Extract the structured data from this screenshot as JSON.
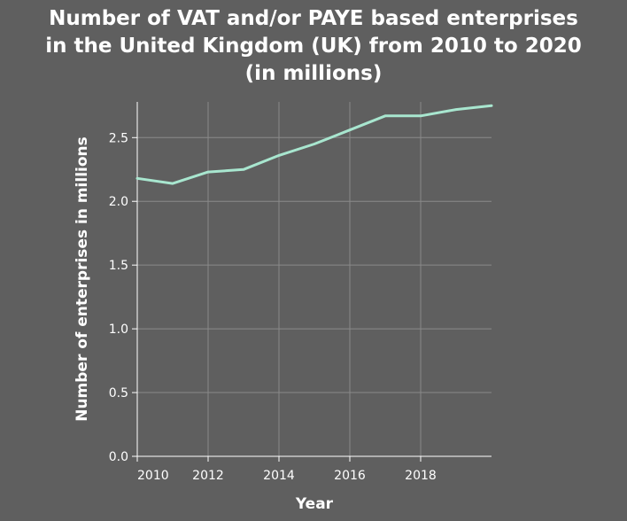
{
  "chart_data": {
    "type": "line",
    "title_lines": [
      "Number of VAT and/or PAYE based enterprises",
      "in the United Kingdom (UK) from 2010 to 2020",
      "(in millions)"
    ],
    "xlabel": "Year",
    "ylabel": "Number of enterprises in millions",
    "x": [
      2010,
      2011,
      2012,
      2013,
      2014,
      2015,
      2016,
      2017,
      2018,
      2019,
      2020
    ],
    "series": [
      {
        "values": [
          2.18,
          2.14,
          2.23,
          2.25,
          2.36,
          2.45,
          2.56,
          2.67,
          2.67,
          2.72,
          2.75
        ],
        "color": "#a8e6cf"
      }
    ],
    "xticks": [
      2010,
      2012,
      2014,
      2016,
      2018
    ],
    "xtick_labels": [
      "2010",
      "2012",
      "2014",
      "2016",
      "2018"
    ],
    "yticks": [
      0.0,
      0.5,
      1.0,
      1.5,
      2.0,
      2.5
    ],
    "ytick_labels": [
      "0.0",
      "0.5",
      "1.0",
      "1.5",
      "2.0",
      "2.5"
    ],
    "xlim": [
      2010,
      2020
    ],
    "ylim": [
      0,
      2.78
    ],
    "grid": true,
    "colors": {
      "background": "#5f5f5f",
      "grid": "#8a8a8a",
      "axis": "#ffffff",
      "text": "#ffffff",
      "line": "#a8e6cf"
    }
  }
}
